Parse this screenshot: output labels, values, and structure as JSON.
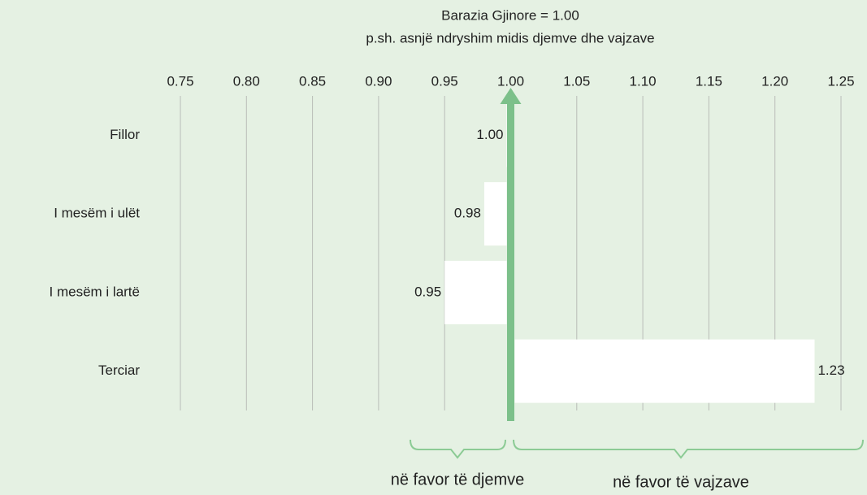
{
  "chart_data": {
    "type": "bar",
    "orientation": "horizontal",
    "title": "Barazia Gjinore = 1.00",
    "subtitle": "p.sh. asnjë ndryshim midis djemve dhe vajzave",
    "categories": [
      "Fillor",
      "I mesëm i ulët",
      "I mesëm i lartë",
      "Terciar"
    ],
    "values": [
      1.0,
      0.98,
      0.95,
      1.23
    ],
    "value_labels": [
      "1.00",
      "0.98",
      "0.95",
      "1.23"
    ],
    "color": "#ffffff",
    "baseline": 1,
    "baseline_color": "#7cc08a",
    "xlim": [
      0.75,
      1.25
    ],
    "xticks": [
      0.75,
      {
        "value": 0.8,
        "label": "0.80"
      },
      0.85,
      {
        "value": 0.9,
        "label": "0.90"
      },
      0.95,
      {
        "value": 1,
        "label": "1.00"
      },
      1.05,
      {
        "value": 1.1,
        "label": "1.10"
      },
      1.15,
      {
        "value": 1.2,
        "label": "1.20"
      },
      1.25
    ],
    "grid": true,
    "annotations": [
      "në favor të djemve",
      "në favor të vajzave"
    ]
  }
}
